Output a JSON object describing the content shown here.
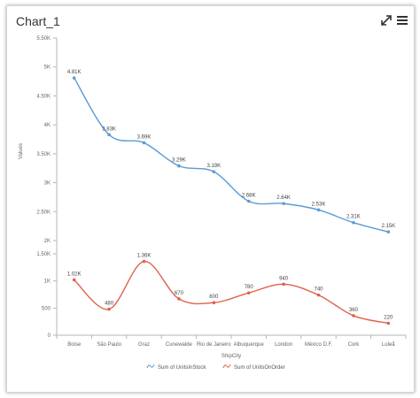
{
  "header": {
    "title": "Chart_1",
    "expand_icon": "expand-icon",
    "menu_icon": "menu-icon"
  },
  "chart_data": {
    "type": "line",
    "xlabel": "ShipCity",
    "ylabel": "Values",
    "categories": [
      "Boise",
      "São Paulo",
      "Graz",
      "Cunewalde",
      "Rio de Janeiro",
      "Albuquerque",
      "London",
      "México D.F.",
      "Cork",
      "Luleå"
    ],
    "y_ticks": [
      "0",
      "500",
      "1K",
      "1.50K",
      "2K",
      "2.50K",
      "3K",
      "3.50K",
      "4K",
      "4.50K",
      "5K",
      "5.50K"
    ],
    "ylim": [
      0,
      5500
    ],
    "grid": false,
    "legend_position": "bottom",
    "series": [
      {
        "name": "Sum of UnitsInStock",
        "color": "#5b9bd5",
        "values": [
          4810,
          3830,
          3690,
          3290,
          3190,
          2680,
          2640,
          2530,
          2310,
          2150
        ],
        "labels": [
          "4.81K",
          "3.83K",
          "3.69K",
          "3.29K",
          "3.19K",
          "2.68K",
          "2.64K",
          "2.53K",
          "2.31K",
          "2.15K"
        ]
      },
      {
        "name": "Sum of UnitsOnOrder",
        "color": "#e0614c",
        "values": [
          1020,
          480,
          1360,
          670,
          600,
          780,
          940,
          740,
          360,
          220
        ],
        "labels": [
          "1.02K",
          "480",
          "1.36K",
          "670",
          "600",
          "780",
          "940",
          "740",
          "360",
          "220"
        ]
      }
    ]
  }
}
